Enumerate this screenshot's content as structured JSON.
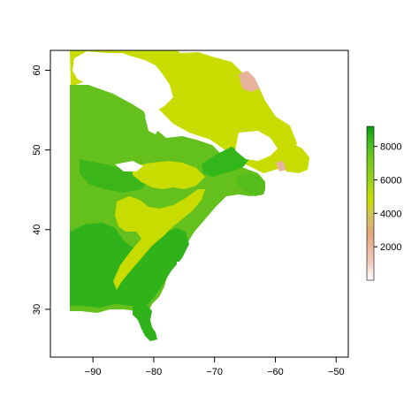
{
  "map": {
    "x_ticks": [
      "−90",
      "−80",
      "−70",
      "−60",
      "−50"
    ],
    "y_ticks": [
      "30",
      "40",
      "50",
      "60"
    ],
    "x_range": [
      -97,
      -48
    ],
    "y_range": [
      24,
      62.5
    ]
  },
  "legend": {
    "ticks": [
      "2000",
      "4000",
      "6000",
      "8000"
    ],
    "range": [
      0,
      9200
    ],
    "colors": [
      "#ffffff",
      "#f1c9bc",
      "#e1a77a",
      "#d2c35b",
      "#c8de00",
      "#9bd21c",
      "#6fc71e",
      "#33b61a",
      "#0a9c0b"
    ]
  }
}
